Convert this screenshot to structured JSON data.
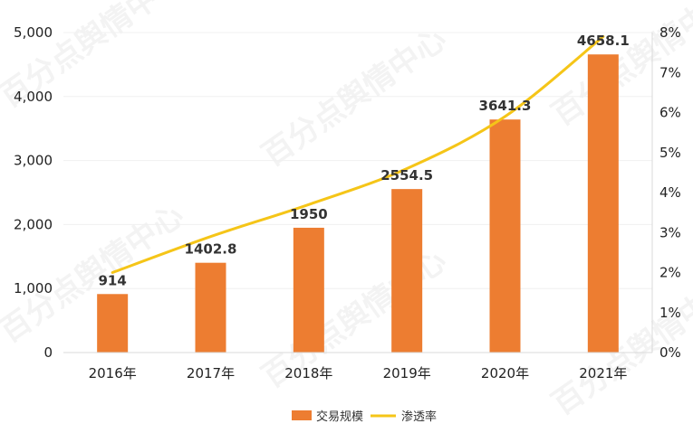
{
  "watermark": "百分点舆情中心",
  "colors": {
    "bar": "#ED7D31",
    "line": "#F5C518",
    "axis": "#D9D9D9",
    "grid": "#F0F0F0"
  },
  "chart_data": {
    "type": "bar",
    "categories": [
      "2016年",
      "2017年",
      "2018年",
      "2019年",
      "2020年",
      "2021年"
    ],
    "series": [
      {
        "name": "交易规模",
        "type": "bar",
        "axis": "left",
        "values": [
          914,
          1402.8,
          1950,
          2554.5,
          3641.3,
          4658.1
        ],
        "labels": [
          "914",
          "1402.8",
          "1950",
          "2554.5",
          "3641.3",
          "4658.1"
        ]
      },
      {
        "name": "渗透率",
        "type": "line",
        "axis": "right",
        "values": [
          2.0,
          2.9,
          3.7,
          4.6,
          5.9,
          7.9
        ]
      }
    ],
    "y_left": {
      "min": 0,
      "max": 5000,
      "ticks": [
        "0",
        "1,000",
        "2,000",
        "3,000",
        "4,000",
        "5,000"
      ]
    },
    "y_right": {
      "min": 0,
      "max": 8,
      "ticks": [
        "0%",
        "1%",
        "2%",
        "3%",
        "4%",
        "5%",
        "6%",
        "7%",
        "8%"
      ]
    },
    "legend": "bottom"
  }
}
